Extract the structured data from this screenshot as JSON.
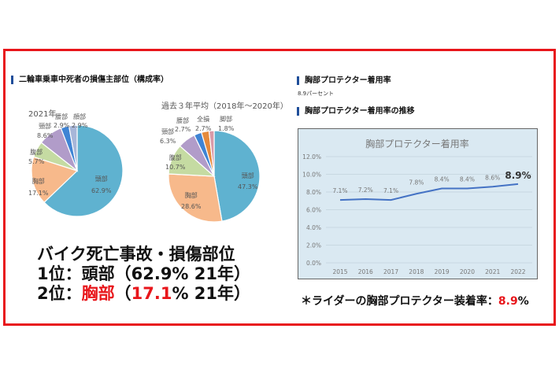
{
  "left": {
    "heading": "二輪車乗車中死者の損傷主部位（構成率）",
    "pie2021": {
      "title": "2021年",
      "slices": [
        {
          "label": "頭部",
          "value": 62.9,
          "text": "62.9%",
          "color": "#5fb2d0"
        },
        {
          "label": "胸部",
          "value": 17.1,
          "text": "17.1%",
          "color": "#f7b98b"
        },
        {
          "label": "腹部",
          "value": 5.7,
          "text": "5.7%",
          "color": "#c5dba2"
        },
        {
          "label": "頸部",
          "value": 8.6,
          "text": "8.6%",
          "color": "#b19cc9"
        },
        {
          "label": "腰部",
          "value": 2.9,
          "text": "2.9%",
          "color": "#3f84d4"
        },
        {
          "label": "顔部",
          "value": 2.9,
          "text": "2.9%",
          "color": "#a7b6d8"
        }
      ]
    },
    "pie3yr": {
      "title": "過去３年平均（2018年～2020年）",
      "slices": [
        {
          "label": "頭部",
          "value": 47.3,
          "text": "47.3%",
          "color": "#5fb2d0"
        },
        {
          "label": "胸部",
          "value": 28.6,
          "text": "28.6%",
          "color": "#f7b98b"
        },
        {
          "label": "腹部",
          "value": 10.7,
          "text": "10.7%",
          "color": "#c5dba2"
        },
        {
          "label": "頸部",
          "value": 6.3,
          "text": "6.3%",
          "color": "#b19cc9"
        },
        {
          "label": "腰部",
          "value": 2.7,
          "text": "2.7%",
          "color": "#3f84d4"
        },
        {
          "label": "全損",
          "value": 2.7,
          "text": "2.7%",
          "color": "#e58a3c"
        },
        {
          "label": "脚部",
          "value": 1.8,
          "text": "1.8%",
          "color": "#d99aa8"
        }
      ]
    },
    "summary": {
      "line1": "バイク死亡事故・損傷部位",
      "line2": "1位：頭部（62.9%  21年）",
      "line3_prefix": "2位：",
      "line3_part": "胸部",
      "line3_paren": "（",
      "line3_value": "17.1",
      "line3_suffix": "%  21年）"
    }
  },
  "right": {
    "heading1": "胸部プロテクター着用率",
    "subtext": "8.9パーセント",
    "heading2": "胸部プロテクター着用率の推移",
    "caption_prefix": "＊ライダーの胸部プロテクター装着率：",
    "caption_value": "8.9",
    "caption_suffix": "%"
  },
  "chart_data": {
    "type": "line",
    "title": "胸部プロテクター着用率",
    "categories": [
      "2015",
      "2016",
      "2017",
      "2018",
      "2019",
      "2020",
      "2021",
      "2022"
    ],
    "values": [
      7.1,
      7.2,
      7.1,
      7.8,
      8.4,
      8.4,
      8.6,
      8.9
    ],
    "data_labels": [
      "7.1%",
      "7.2%",
      "7.1%",
      "7.8%",
      "8.4%",
      "8.4%",
      "8.6%",
      "8.9%"
    ],
    "yticks": [
      "0.0%",
      "2.0%",
      "4.0%",
      "6.0%",
      "8.0%",
      "10.0%",
      "12.0%"
    ],
    "ylim": [
      0,
      12
    ],
    "grid": true,
    "line_color": "#4472c4",
    "background": "#dae9f2"
  }
}
